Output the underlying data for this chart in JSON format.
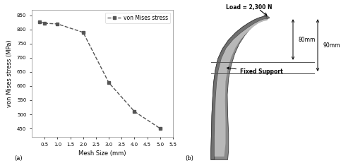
{
  "x": [
    0.3,
    0.5,
    1.0,
    2.0,
    3.0,
    4.0,
    5.0
  ],
  "y": [
    828,
    822,
    820,
    790,
    612,
    510,
    450
  ],
  "xlabel": "Mesh Size (mm)",
  "ylabel": "von Mises stress (MPa)",
  "legend_label": "von Mises stress",
  "xlim": [
    0,
    5.5
  ],
  "ylim": [
    420,
    870
  ],
  "yticks": [
    450,
    500,
    550,
    600,
    650,
    700,
    750,
    800,
    850
  ],
  "xticks": [
    0.5,
    1.0,
    1.5,
    2.0,
    2.5,
    3.0,
    3.5,
    4.0,
    4.5,
    5.0,
    5.5
  ],
  "line_color": "#555555",
  "marker": "s",
  "marker_size": 3.5,
  "line_style": "--",
  "label_a": "(a)",
  "label_b": "(b)",
  "fig_bg": "#ffffff",
  "load_text": "Load = 2,300 N",
  "dim1_text": "80mm",
  "dim2_text": "90mm",
  "fixed_text": "Fixed Support"
}
